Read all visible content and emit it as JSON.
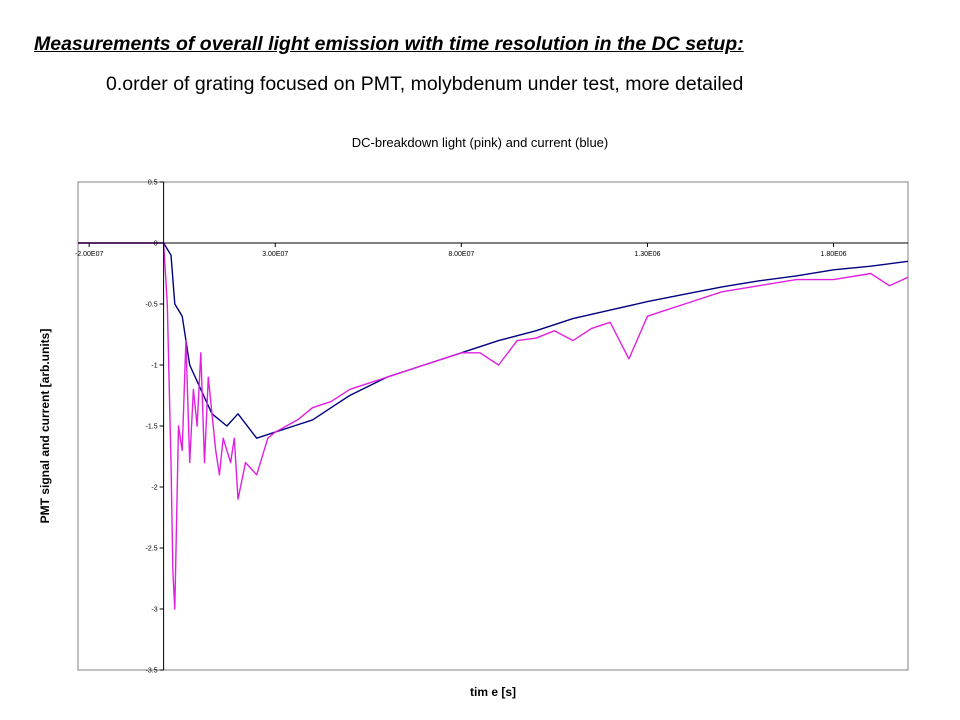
{
  "slide": {
    "title": "Measurements of overall light emission with time resolution in the DC setup:",
    "subtitle": "0.order of grating focused on PMT, molybdenum under test, more detailed"
  },
  "chart_data": {
    "type": "line",
    "title": "DC-breakdown light (pink) and current (blue)",
    "xlabel": "tim e [s]",
    "ylabel": "PMT signal and current [arb.units]",
    "xlim": [
      -2.3e-07,
      2e-06
    ],
    "ylim": [
      -3.5,
      0.5
    ],
    "x_ticks": [
      -2e-07,
      3e-07,
      8e-07,
      1.3e-06,
      1.8e-06
    ],
    "x_tick_labels": [
      "-2.00E07",
      "3.00E07",
      "8.00E07",
      "1.30E06",
      "1.80E06"
    ],
    "y_ticks": [
      0.5,
      0,
      -0.5,
      -1,
      -1.5,
      -2,
      -2.5,
      -3,
      -3.5
    ],
    "y_tick_labels": [
      "0.5",
      "0",
      "-0.5",
      "-1",
      "-1.5",
      "-2",
      "-2.5",
      "-3",
      "-3.5"
    ],
    "grid": false,
    "legend": "none",
    "series": [
      {
        "color": "#000080",
        "x": [
          -2.3e-07,
          -1e-07,
          0,
          2e-08,
          3e-08,
          5e-08,
          7e-08,
          1e-07,
          1.3e-07,
          1.7e-07,
          2e-07,
          2.5e-07,
          3e-07,
          3.5e-07,
          4e-07,
          4.5e-07,
          5e-07,
          6e-07,
          7e-07,
          8e-07,
          9e-07,
          1e-06,
          1.1e-06,
          1.2e-06,
          1.3e-06,
          1.4e-06,
          1.5e-06,
          1.6e-06,
          1.7e-06,
          1.8e-06,
          1.9e-06,
          2e-06
        ],
        "y": [
          0,
          0,
          0,
          -0.1,
          -0.5,
          -0.6,
          -1.0,
          -1.2,
          -1.4,
          -1.5,
          -1.4,
          -1.6,
          -1.55,
          -1.5,
          -1.45,
          -1.35,
          -1.25,
          -1.1,
          -1.0,
          -0.9,
          -0.8,
          -0.72,
          -0.62,
          -0.55,
          -0.48,
          -0.42,
          -0.36,
          -0.31,
          -0.27,
          -0.22,
          -0.19,
          -0.15
        ]
      },
      {
        "color": "#e020e0",
        "x": [
          -2.3e-07,
          -1e-07,
          0,
          1e-08,
          2e-08,
          2.5e-08,
          3e-08,
          4e-08,
          5e-08,
          6e-08,
          7e-08,
          8e-08,
          9e-08,
          1e-07,
          1.1e-07,
          1.2e-07,
          1.3e-07,
          1.4e-07,
          1.5e-07,
          1.6e-07,
          1.7e-07,
          1.8e-07,
          1.9e-07,
          2e-07,
          2.2e-07,
          2.5e-07,
          2.8e-07,
          3e-07,
          3.3e-07,
          3.6e-07,
          4e-07,
          4.5e-07,
          5e-07,
          5.5e-07,
          6e-07,
          6.5e-07,
          7e-07,
          7.5e-07,
          8e-07,
          8.5e-07,
          9e-07,
          9.5e-07,
          1e-06,
          1.05e-06,
          1.1e-06,
          1.15e-06,
          1.2e-06,
          1.25e-06,
          1.3e-06,
          1.35e-06,
          1.4e-06,
          1.5e-06,
          1.6e-06,
          1.7e-06,
          1.8e-06,
          1.9e-06,
          1.95e-06,
          2e-06
        ],
        "y": [
          0,
          0,
          0,
          -0.5,
          -1.8,
          -2.7,
          -3.0,
          -1.5,
          -1.7,
          -0.8,
          -1.8,
          -1.2,
          -1.5,
          -0.9,
          -1.8,
          -1.1,
          -1.4,
          -1.7,
          -1.9,
          -1.6,
          -1.7,
          -1.8,
          -1.6,
          -2.1,
          -1.8,
          -1.9,
          -1.6,
          -1.55,
          -1.5,
          -1.45,
          -1.35,
          -1.3,
          -1.2,
          -1.15,
          -1.1,
          -1.05,
          -1.0,
          -0.95,
          -0.9,
          -0.9,
          -1.0,
          -0.8,
          -0.78,
          -0.72,
          -0.8,
          -0.7,
          -0.65,
          -0.95,
          -0.6,
          -0.55,
          -0.5,
          -0.4,
          -0.35,
          -0.3,
          -0.3,
          -0.25,
          -0.35,
          -0.28
        ]
      }
    ]
  }
}
